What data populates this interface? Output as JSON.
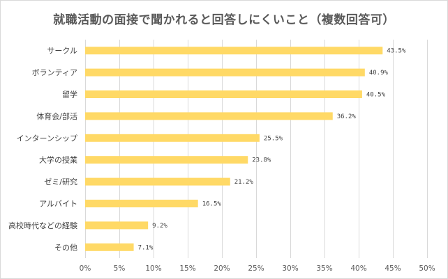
{
  "chart_data": {
    "type": "bar",
    "orientation": "horizontal",
    "title": "就職活動の面接で聞かれると回答しにくいこと（複数回答可）",
    "categories": [
      "サークル",
      "ボランティア",
      "留学",
      "体育会/部活",
      "インターンシップ",
      "大学の授業",
      "ゼミ/研究",
      "アルバイト",
      "高校時代などの経験",
      "その他"
    ],
    "values": [
      43.5,
      40.9,
      40.5,
      36.2,
      25.5,
      23.8,
      21.2,
      16.5,
      9.2,
      7.1
    ],
    "value_labels": [
      "43.5%",
      "40.9%",
      "40.5%",
      "36.2%",
      "25.5%",
      "23.8%",
      "21.2%",
      "16.5%",
      "9.2%",
      "7.1%"
    ],
    "xlim": [
      0,
      50
    ],
    "xticks": [
      0,
      5,
      10,
      15,
      20,
      25,
      30,
      35,
      40,
      45,
      50
    ],
    "xtick_labels": [
      "0%",
      "5%",
      "10%",
      "15%",
      "20%",
      "25%",
      "30%",
      "35%",
      "40%",
      "45%",
      "50%"
    ],
    "grid": true,
    "legend": "none",
    "bar_color": "#FFD966",
    "grid_color": "#d9d9d9"
  }
}
